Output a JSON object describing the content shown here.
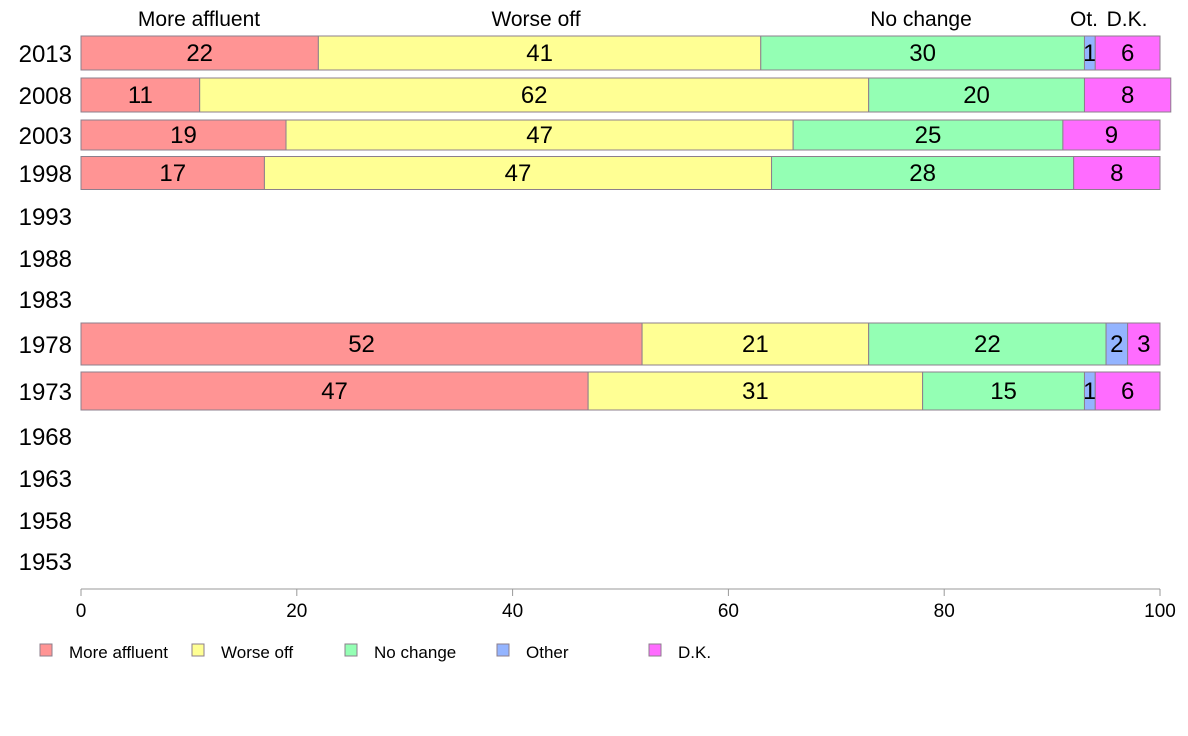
{
  "chart_data": {
    "type": "bar",
    "orientation": "horizontal",
    "stacked": true,
    "categories": [
      "2013",
      "2008",
      "2003",
      "1998",
      "1993",
      "1988",
      "1983",
      "1978",
      "1973",
      "1968",
      "1963",
      "1958",
      "1953"
    ],
    "series": [
      {
        "name": "More affluent",
        "header": "More affluent",
        "color": "#ff9494",
        "values": [
          22,
          11,
          19,
          17,
          null,
          null,
          null,
          52,
          47,
          null,
          null,
          null,
          null
        ]
      },
      {
        "name": "Worse off",
        "header": "Worse off",
        "color": "#ffff94",
        "values": [
          41,
          62,
          47,
          47,
          null,
          null,
          null,
          21,
          31,
          null,
          null,
          null,
          null
        ]
      },
      {
        "name": "No change",
        "header": "No change",
        "color": "#94ffb4",
        "values": [
          30,
          20,
          25,
          28,
          null,
          null,
          null,
          22,
          15,
          null,
          null,
          null,
          null
        ]
      },
      {
        "name": "Other",
        "header": "Ot.",
        "color": "#94b4ff",
        "values": [
          1,
          0,
          0,
          0,
          null,
          null,
          null,
          2,
          1,
          null,
          null,
          null,
          null
        ]
      },
      {
        "name": "D.K.",
        "header": "D.K.",
        "color": "#ff6cff",
        "values": [
          6,
          8,
          9,
          8,
          null,
          null,
          null,
          3,
          6,
          null,
          null,
          null,
          null
        ]
      }
    ],
    "xlim": [
      0,
      100
    ],
    "xticks": [
      0,
      20,
      40,
      60,
      80,
      100
    ],
    "grid": false,
    "legend": "bottom"
  }
}
